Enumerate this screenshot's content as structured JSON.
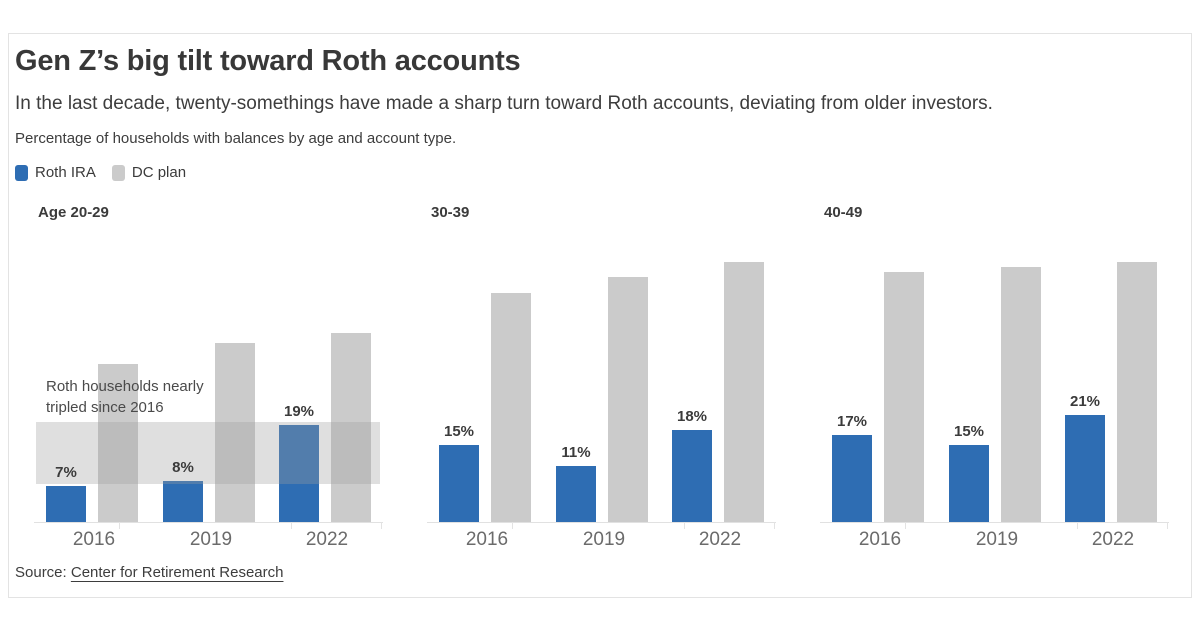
{
  "card": {
    "title": "Gen Z’s big tilt toward Roth accounts",
    "subtitle": "In the last decade, twenty-somethings have made a sharp turn toward Roth accounts, deviating from older investors.",
    "note": "Percentage of households with balances by age and account type.",
    "source_prefix": "Source: ",
    "source_link": "Center for Retirement Research"
  },
  "legend": {
    "items": [
      {
        "label": "Roth IRA",
        "color_key": "roth"
      },
      {
        "label": "DC plan",
        "color_key": "dc"
      }
    ]
  },
  "colors": {
    "roth": "#2E6DB3",
    "dc": "#CBCBCB",
    "band": "rgba(158,158,158,0.33)",
    "baseline": "#E1E1E1",
    "text_dark": "#3B3B3B",
    "tick_label": "#6B6B6B"
  },
  "chart_data": {
    "type": "bar",
    "unit": "%",
    "categories": [
      "2016",
      "2019",
      "2022"
    ],
    "legend": [
      "Roth IRA",
      "DC plan"
    ],
    "legend_position": "top-left",
    "grid": false,
    "ylim": [
      0,
      55
    ],
    "panels": [
      {
        "title": "Age 20-29",
        "series": [
          {
            "name": "Roth IRA",
            "values": [
              7,
              8,
              19
            ],
            "labels": [
              "7%",
              "8%",
              "19%"
            ]
          },
          {
            "name": "DC plan",
            "values": [
              31,
              35,
              37
            ]
          }
        ],
        "annotation": {
          "lines": [
            "Roth households nearly",
            "tripled since 2016"
          ],
          "band_range": [
            7,
            19
          ]
        }
      },
      {
        "title": "30-39",
        "series": [
          {
            "name": "Roth IRA",
            "values": [
              15,
              11,
              18
            ],
            "labels": [
              "15%",
              "11%",
              "18%"
            ]
          },
          {
            "name": "DC plan",
            "values": [
              45,
              48,
              51
            ]
          }
        ]
      },
      {
        "title": "40-49",
        "series": [
          {
            "name": "Roth IRA",
            "values": [
              17,
              15,
              21
            ],
            "labels": [
              "17%",
              "15%",
              "21%"
            ]
          },
          {
            "name": "DC plan",
            "values": [
              49,
              50,
              51
            ]
          }
        ]
      }
    ]
  }
}
